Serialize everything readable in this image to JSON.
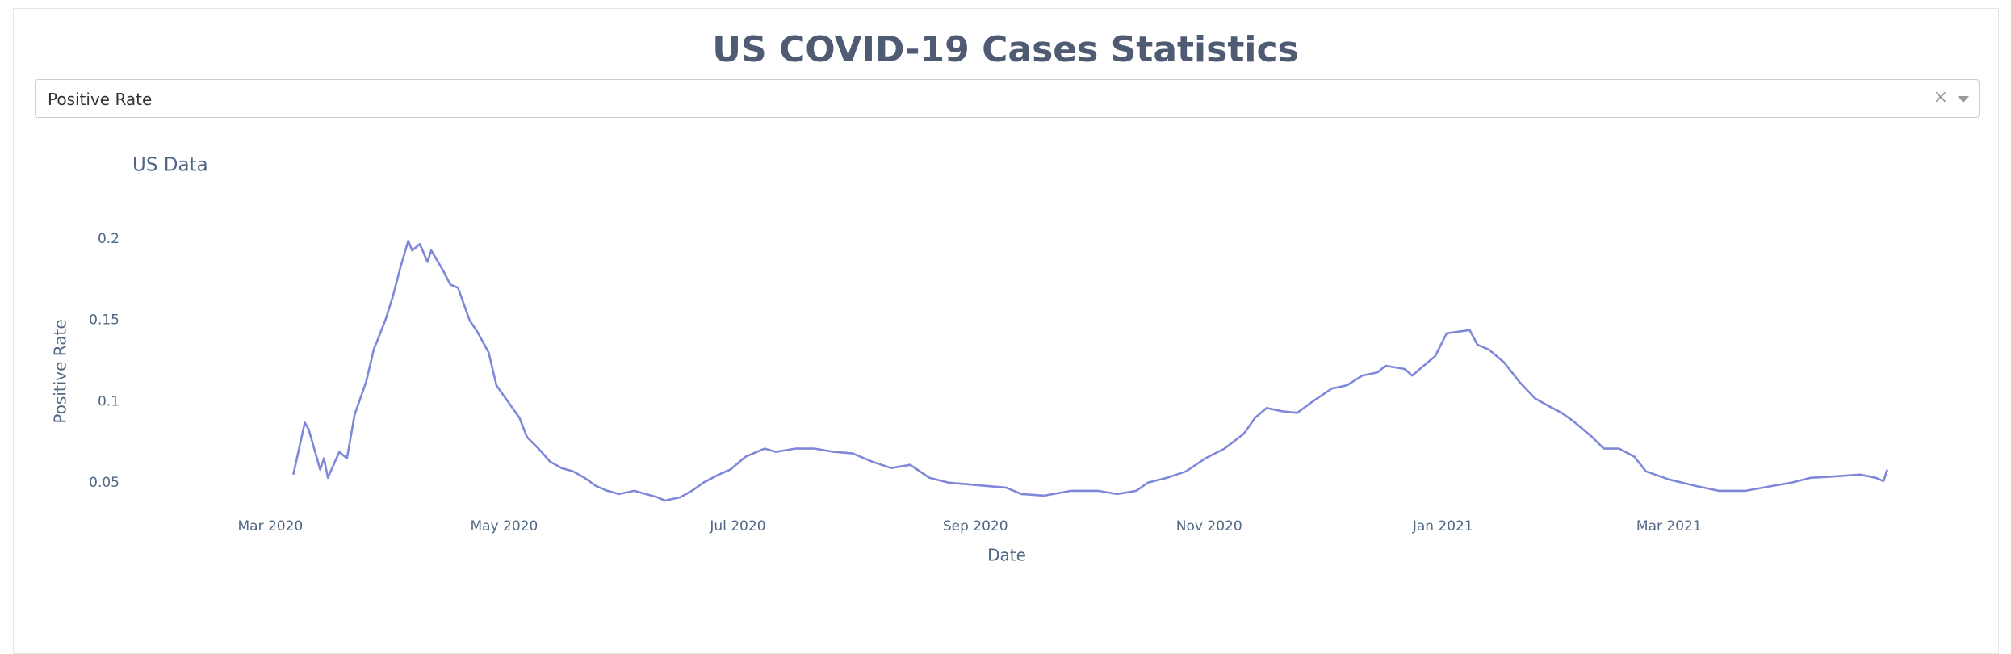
{
  "title": "US COVID-19 Cases Statistics",
  "dropdown": {
    "value": "Positive Rate"
  },
  "chart_data": {
    "type": "line",
    "title": "US Data",
    "x_label": "Date",
    "y_label": "Positive Rate",
    "x": [
      "2020-03-07",
      "2020-03-10",
      "2020-03-11",
      "2020-03-14",
      "2020-03-15",
      "2020-03-16",
      "2020-03-19",
      "2020-03-21",
      "2020-03-23",
      "2020-03-26",
      "2020-03-28",
      "2020-03-31",
      "2020-04-02",
      "2020-04-04",
      "2020-04-06",
      "2020-04-07",
      "2020-04-09",
      "2020-04-11",
      "2020-04-12",
      "2020-04-15",
      "2020-04-17",
      "2020-04-19",
      "2020-04-22",
      "2020-04-24",
      "2020-04-27",
      "2020-04-29",
      "2020-05-02",
      "2020-05-05",
      "2020-05-07",
      "2020-05-10",
      "2020-05-13",
      "2020-05-16",
      "2020-05-19",
      "2020-05-22",
      "2020-05-25",
      "2020-05-28",
      "2020-05-31",
      "2020-06-04",
      "2020-06-07",
      "2020-06-10",
      "2020-06-12",
      "2020-06-16",
      "2020-06-19",
      "2020-06-22",
      "2020-06-26",
      "2020-06-29",
      "2020-07-03",
      "2020-07-08",
      "2020-07-11",
      "2020-07-16",
      "2020-07-21",
      "2020-07-26",
      "2020-07-31",
      "2020-08-05",
      "2020-08-10",
      "2020-08-15",
      "2020-08-20",
      "2020-08-25",
      "2020-08-30",
      "2020-09-04",
      "2020-09-09",
      "2020-09-13",
      "2020-09-19",
      "2020-09-26",
      "2020-10-03",
      "2020-10-08",
      "2020-10-13",
      "2020-10-16",
      "2020-10-21",
      "2020-10-26",
      "2020-10-31",
      "2020-11-05",
      "2020-11-10",
      "2020-11-13",
      "2020-11-16",
      "2020-11-20",
      "2020-11-24",
      "2020-11-28",
      "2020-12-03",
      "2020-12-07",
      "2020-12-11",
      "2020-12-15",
      "2020-12-17",
      "2020-12-22",
      "2020-12-24",
      "2020-12-27",
      "2020-12-30",
      "2021-01-02",
      "2021-01-05",
      "2021-01-08",
      "2021-01-10",
      "2021-01-13",
      "2021-01-17",
      "2021-01-21",
      "2021-01-25",
      "2021-01-28",
      "2021-02-01",
      "2021-02-04",
      "2021-02-09",
      "2021-02-12",
      "2021-02-16",
      "2021-02-20",
      "2021-02-23",
      "2021-03-01",
      "2021-03-08",
      "2021-03-14",
      "2021-03-21",
      "2021-03-28",
      "2021-04-02",
      "2021-04-07",
      "2021-04-14",
      "2021-04-20",
      "2021-04-24",
      "2021-04-26",
      "2021-04-27"
    ],
    "series": [
      {
        "name": "Positive Rate",
        "color": "#7f88d8",
        "values": [
          0.055,
          0.087,
          0.083,
          0.058,
          0.065,
          0.053,
          0.069,
          0.065,
          0.092,
          0.112,
          0.132,
          0.15,
          0.165,
          0.183,
          0.199,
          0.193,
          0.197,
          0.186,
          0.193,
          0.181,
          0.172,
          0.17,
          0.15,
          0.143,
          0.13,
          0.11,
          0.1,
          0.09,
          0.078,
          0.071,
          0.063,
          0.059,
          0.057,
          0.053,
          0.048,
          0.045,
          0.043,
          0.045,
          0.043,
          0.041,
          0.039,
          0.041,
          0.045,
          0.05,
          0.055,
          0.058,
          0.066,
          0.071,
          0.069,
          0.071,
          0.071,
          0.069,
          0.068,
          0.063,
          0.059,
          0.061,
          0.053,
          0.05,
          0.049,
          0.048,
          0.047,
          0.043,
          0.042,
          0.045,
          0.045,
          0.043,
          0.045,
          0.05,
          0.053,
          0.057,
          0.065,
          0.071,
          0.08,
          0.09,
          0.096,
          0.094,
          0.093,
          0.1,
          0.108,
          0.11,
          0.116,
          0.118,
          0.122,
          0.12,
          0.116,
          0.122,
          0.128,
          0.142,
          0.143,
          0.144,
          0.135,
          0.132,
          0.124,
          0.112,
          0.102,
          0.098,
          0.093,
          0.088,
          0.078,
          0.071,
          0.071,
          0.066,
          0.057,
          0.052,
          0.048,
          0.045,
          0.045,
          0.048,
          0.05,
          0.053,
          0.054,
          0.055,
          0.053,
          0.051,
          0.058
        ]
      }
    ],
    "xlim": [
      "2020-01-25",
      "2021-05-20"
    ],
    "xticks": [
      {
        "value": "2020-03-01",
        "label": "Mar 2020"
      },
      {
        "value": "2020-05-01",
        "label": "May 2020"
      },
      {
        "value": "2020-07-01",
        "label": "Jul 2020"
      },
      {
        "value": "2020-09-01",
        "label": "Sep 2020"
      },
      {
        "value": "2020-11-01",
        "label": "Nov 2020"
      },
      {
        "value": "2021-01-01",
        "label": "Jan 2021"
      },
      {
        "value": "2021-03-01",
        "label": "Mar 2021"
      }
    ],
    "ylim": [
      0.035,
      0.213
    ],
    "yticks": [
      0.05,
      0.1,
      0.15,
      0.2
    ],
    "grid": false
  }
}
